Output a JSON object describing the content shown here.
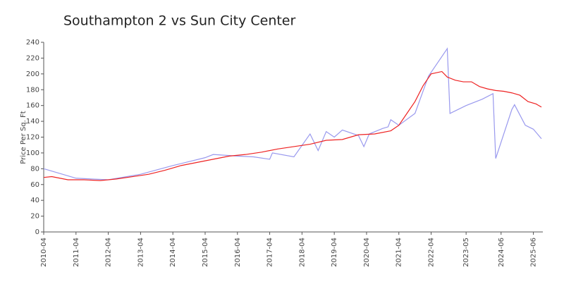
{
  "chart_data": {
    "type": "line",
    "title": "Southampton 2 vs Sun City Center",
    "y_label": "Price Per Sq. Ft",
    "xlim": [
      "2010-04",
      "2025-09"
    ],
    "xticks": [
      "2010-04",
      "2011-04",
      "2012-04",
      "2013-04",
      "2014-04",
      "2015-04",
      "2016-04",
      "2017-04",
      "2018-04",
      "2019-04",
      "2020-04",
      "2021-04",
      "2022-04",
      "2023-05",
      "2024-06",
      "2025-06"
    ],
    "ylim": [
      0,
      240
    ],
    "yticks": [
      0,
      20,
      40,
      60,
      80,
      100,
      120,
      140,
      160,
      180,
      200,
      220,
      240
    ],
    "series": [
      {
        "color": "#9999ee",
        "x": [
          "2010-04",
          "2011-04",
          "2012-04",
          "2013-04",
          "2014-04",
          "2015-04",
          "2015-07",
          "2016-04",
          "2016-10",
          "2017-04",
          "2017-05",
          "2018-01",
          "2018-07",
          "2018-10",
          "2019-01",
          "2019-04",
          "2019-07",
          "2020-01",
          "2020-03",
          "2020-05",
          "2020-10",
          "2020-12",
          "2021-01",
          "2021-04",
          "2021-10",
          "2022-03",
          "2022-10",
          "2022-11",
          "2023-05",
          "2023-11",
          "2024-03",
          "2024-04",
          "2024-10",
          "2024-11",
          "2025-03",
          "2025-06",
          "2025-08",
          "2025-09"
        ],
        "values": [
          80,
          68,
          66,
          73,
          84,
          94,
          98,
          96,
          95,
          92,
          100,
          95,
          124,
          103,
          127,
          120,
          129,
          122,
          108,
          124,
          131,
          133,
          142,
          135,
          150,
          197,
          232,
          150,
          160,
          168,
          175,
          93,
          155,
          161,
          135,
          130,
          122,
          118
        ]
      },
      {
        "color": "#ee2222",
        "x": [
          "2010-04",
          "2010-07",
          "2011-01",
          "2011-07",
          "2012-01",
          "2012-07",
          "2013-01",
          "2013-07",
          "2014-01",
          "2014-07",
          "2015-01",
          "2015-07",
          "2016-01",
          "2016-07",
          "2017-01",
          "2017-07",
          "2018-01",
          "2018-07",
          "2019-01",
          "2019-07",
          "2020-01",
          "2020-07",
          "2021-01",
          "2021-04",
          "2021-07",
          "2021-10",
          "2022-01",
          "2022-04",
          "2022-08",
          "2022-10",
          "2023-01",
          "2023-04",
          "2023-07",
          "2023-10",
          "2024-01",
          "2024-04",
          "2024-07",
          "2024-10",
          "2025-01",
          "2025-04",
          "2025-07",
          "2025-09"
        ],
        "values": [
          69,
          70,
          66,
          66,
          65,
          67,
          70,
          73,
          78,
          84,
          88,
          92,
          96,
          98,
          101,
          105,
          108,
          111,
          116,
          117,
          123,
          124,
          128,
          135,
          150,
          165,
          185,
          200,
          203,
          196,
          192,
          190,
          190,
          184,
          181,
          179,
          178,
          176,
          173,
          165,
          162,
          158
        ]
      }
    ]
  }
}
